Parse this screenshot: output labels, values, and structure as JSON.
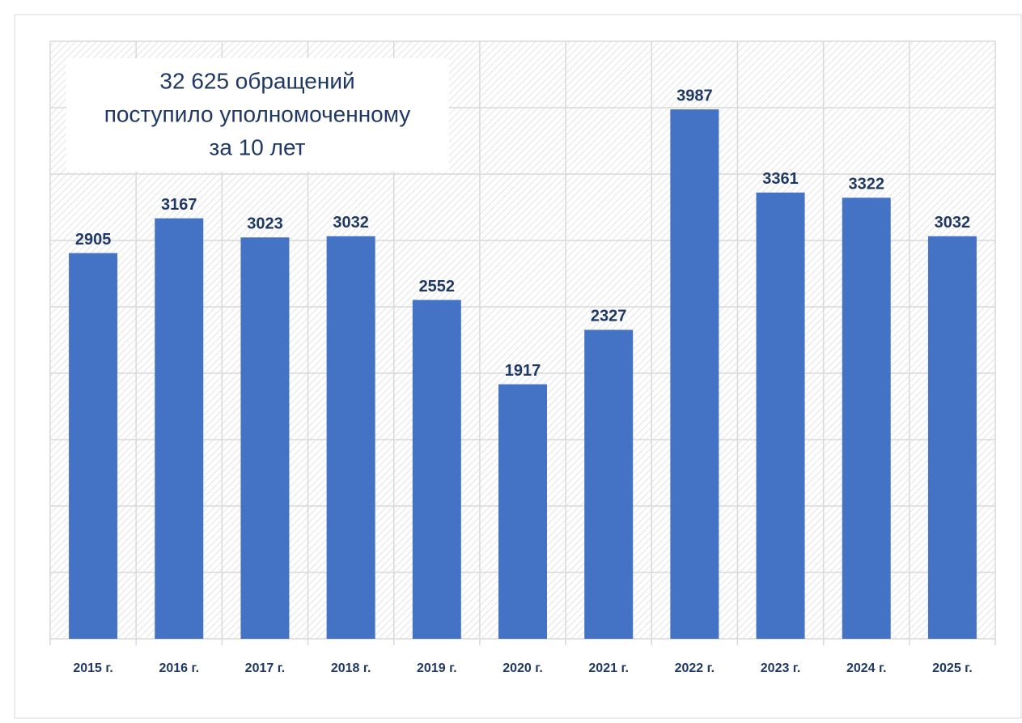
{
  "chart_data": {
    "type": "bar",
    "annotation": [
      "32 625 обращений",
      "поступило уполномоченному",
      "за 10 лет"
    ],
    "categories": [
      "2015 г.",
      "2016 г.",
      "2017 г.",
      "2018 г.",
      "2019 г.",
      "2020 г.",
      "2021 г.",
      "2022 г.",
      "2023 г.",
      "2024 г.",
      "2025 г."
    ],
    "values": [
      2905,
      3167,
      3023,
      3032,
      2552,
      1917,
      2327,
      3987,
      3361,
      3322,
      3032
    ],
    "color": "#4472c4",
    "ylim": [
      0,
      4500
    ],
    "yticks": [
      0,
      500,
      1000,
      1500,
      2000,
      2500,
      3000,
      3500,
      4000,
      4500
    ],
    "grid": true
  }
}
